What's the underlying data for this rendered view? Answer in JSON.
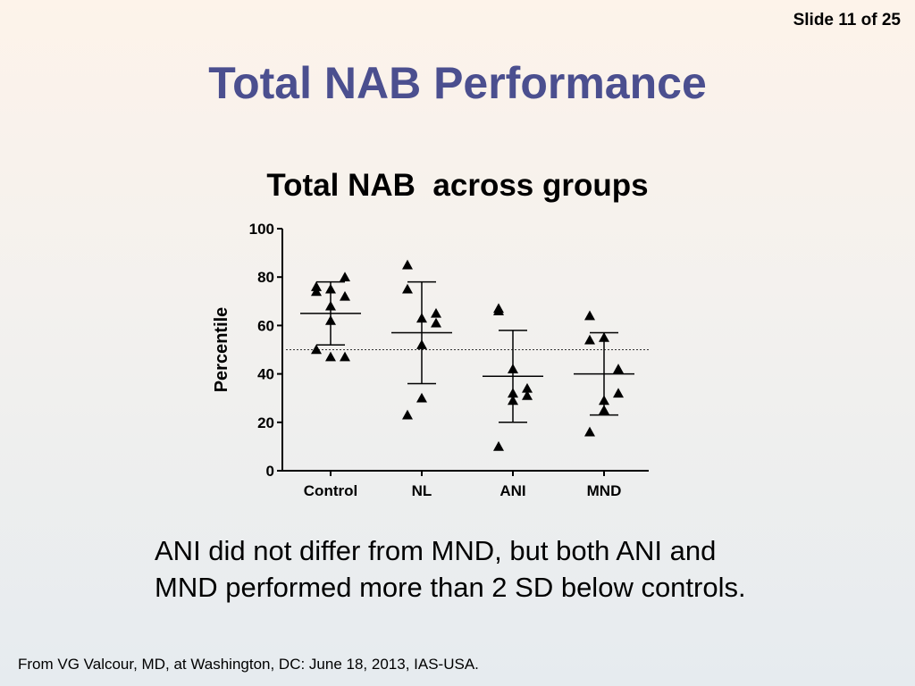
{
  "slide_number": "Slide 11 of 25",
  "title": "Total NAB Performance",
  "body_text": "ANI did not differ from MND, but both ANI and MND performed more than 2 SD below controls.",
  "footer": "From VG Valcour, MD, at Washington, DC: June 18, 2013, IAS-USA.",
  "colors": {
    "title": "#4b4f8f",
    "marks": "#000000"
  },
  "chart_data": {
    "type": "scatter",
    "title": "Total NAB  across groups",
    "ylabel": "Percentile",
    "xlabel": "",
    "ylim": [
      0,
      100
    ],
    "yticks": [
      0,
      20,
      40,
      60,
      80,
      100
    ],
    "categories": [
      "Control",
      "NL",
      "ANI",
      "MND"
    ],
    "marker": "triangle",
    "reference_line": 50,
    "reference_style": "dotted",
    "groups": [
      {
        "category": "Control",
        "points": [
          76,
          74,
          75,
          72,
          80,
          68,
          62,
          50,
          47,
          47
        ],
        "mean": 65,
        "sd_low": 52,
        "sd_high": 78
      },
      {
        "category": "NL",
        "points": [
          85,
          75,
          63,
          61,
          65,
          52,
          30,
          23
        ],
        "mean": 57,
        "sd_low": 36,
        "sd_high": 78
      },
      {
        "category": "ANI",
        "points": [
          67,
          66,
          42,
          34,
          31,
          32,
          29,
          10
        ],
        "mean": 39,
        "sd_low": 20,
        "sd_high": 58
      },
      {
        "category": "MND",
        "points": [
          64,
          54,
          55,
          42,
          32,
          29,
          25,
          16
        ],
        "mean": 40,
        "sd_low": 23,
        "sd_high": 57
      }
    ]
  }
}
